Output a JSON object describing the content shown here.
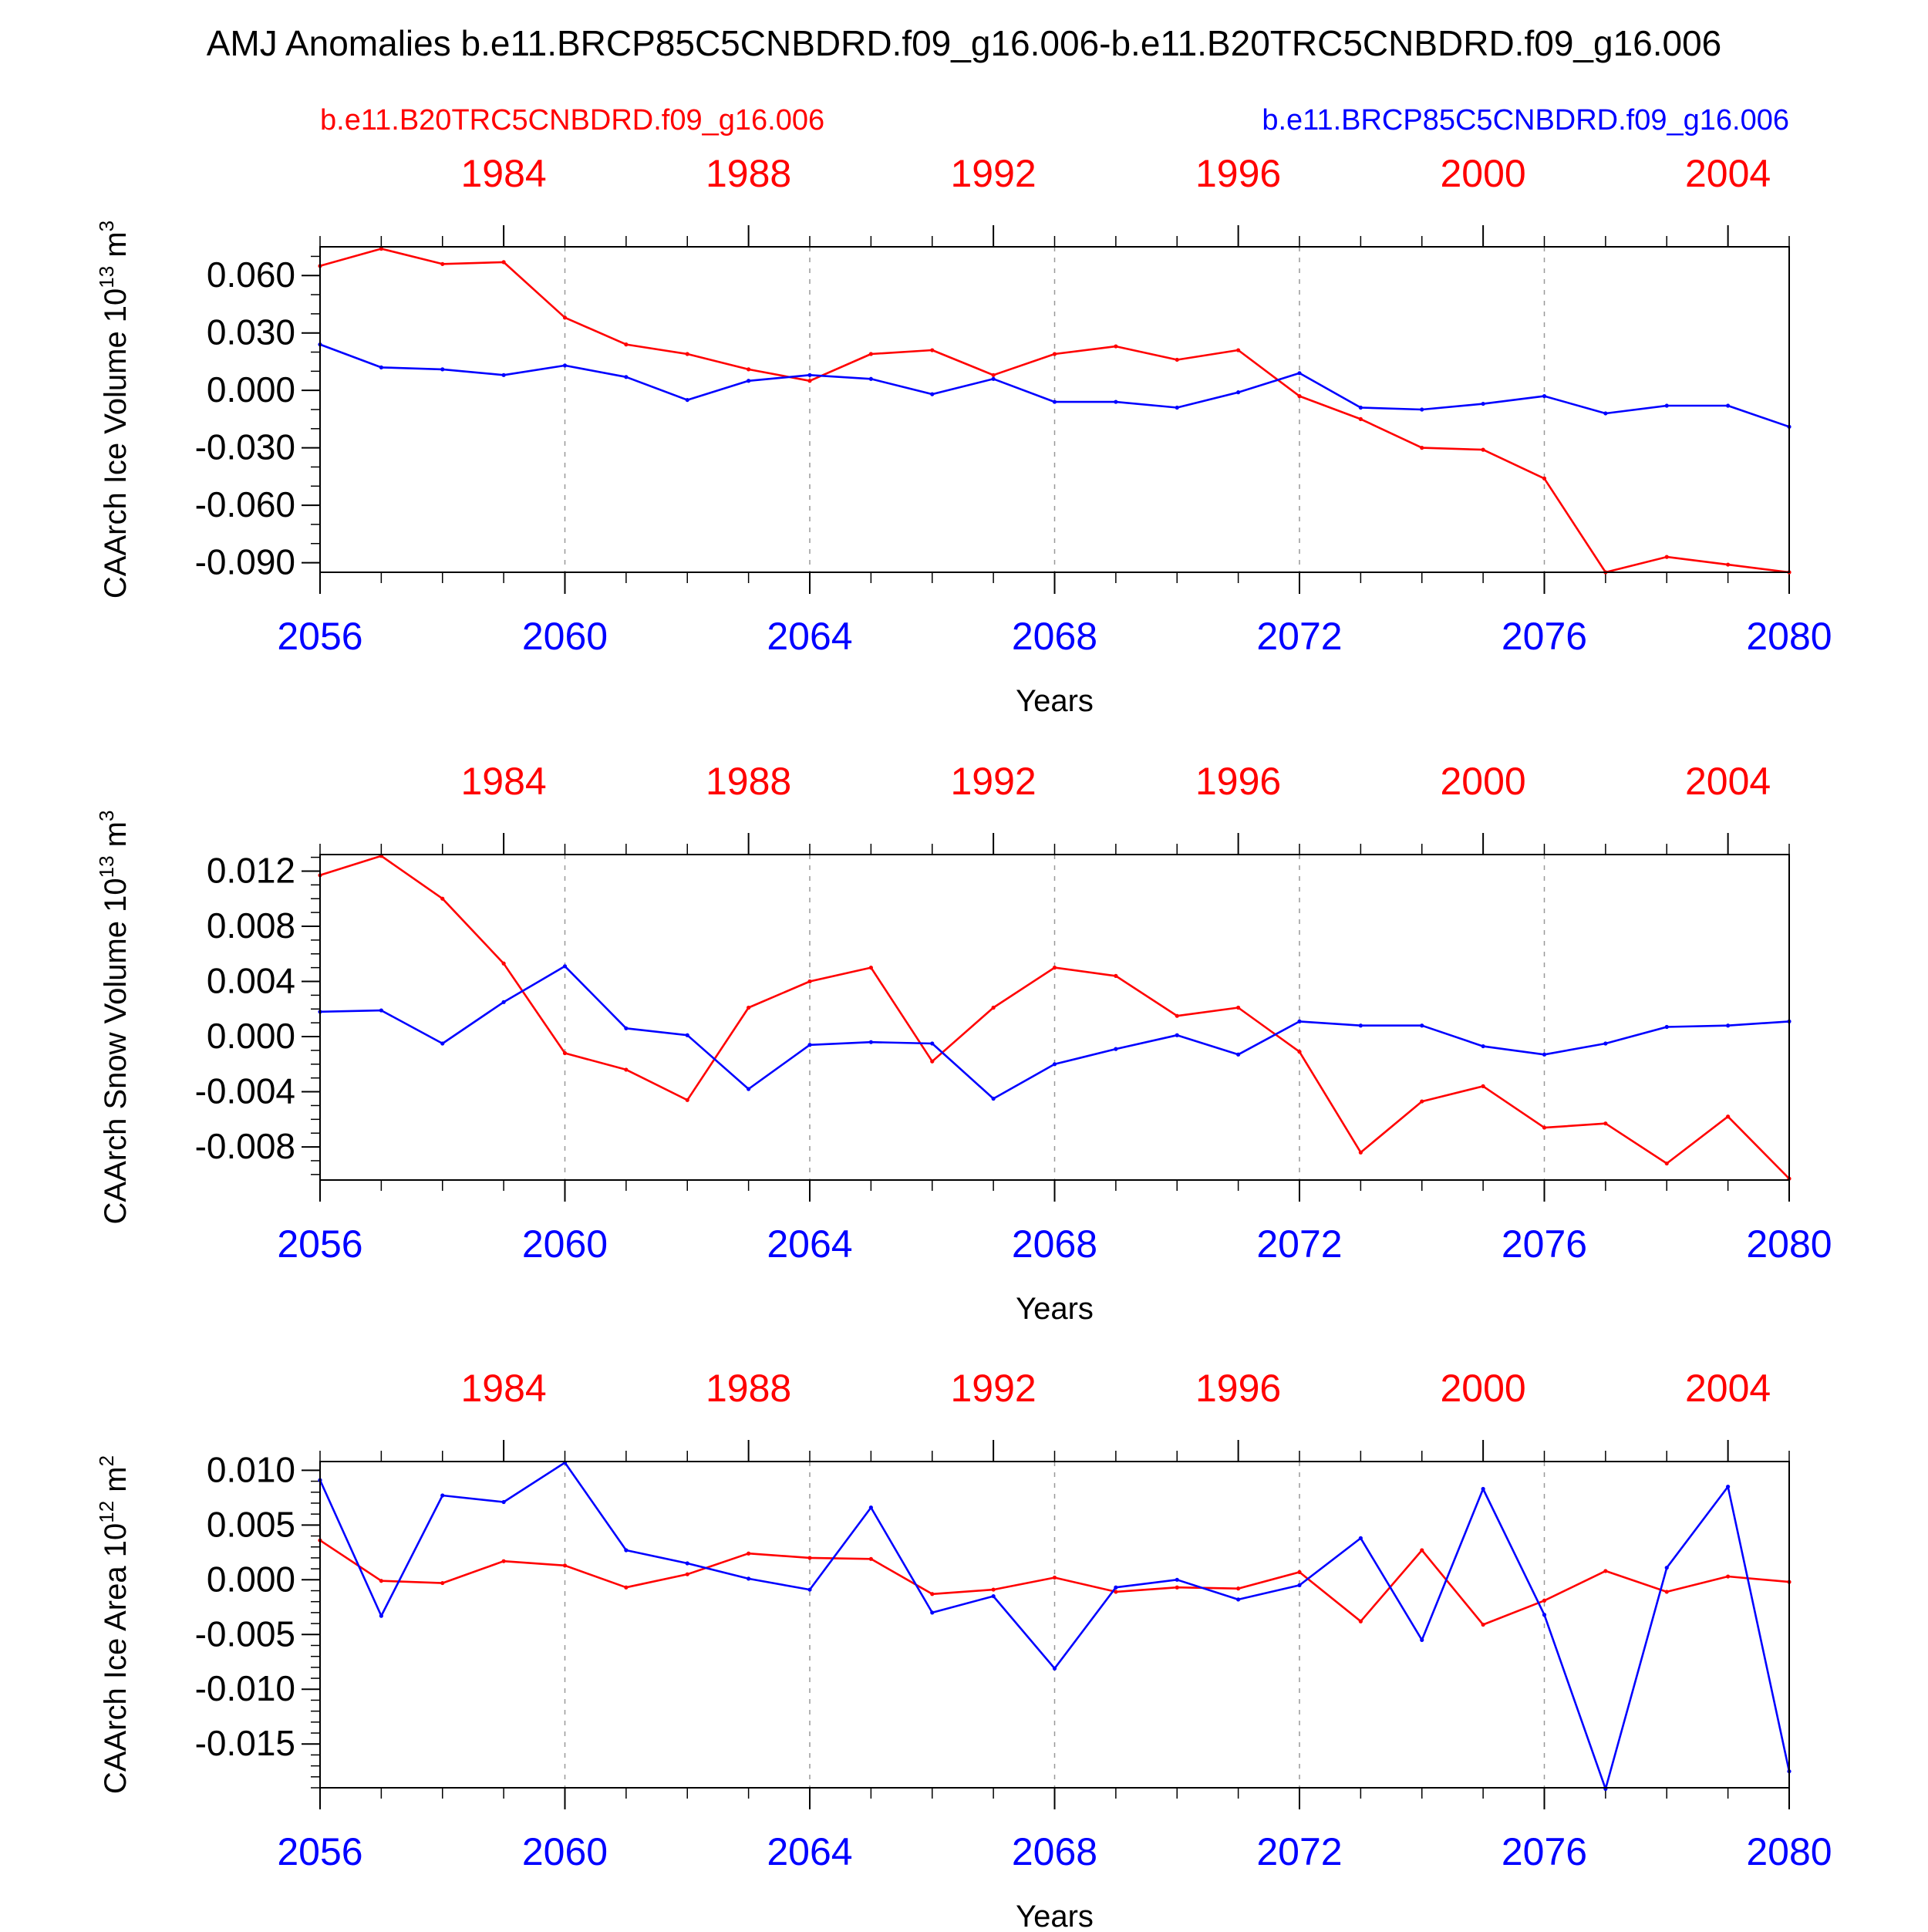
{
  "title": "AMJ Anomalies b.e11.BRCP85C5CNBDRD.f09_g16.006-b.e11.B20TRC5CNBDRD.f09_g16.006",
  "legend": {
    "red_label": "b.e11.B20TRC5CNBDRD.f09_g16.006",
    "blue_label": "b.e11.BRCP85C5CNBDRD.f09_g16.006"
  },
  "colors": {
    "red": "#ff0000",
    "blue": "#0000ff",
    "axis": "#000000",
    "grid": "#999999"
  },
  "chart_data": [
    {
      "type": "line",
      "ylabel": "CAArch Ice Volume 10",
      "ylabel_exp": "13",
      "ylabel_unit": " m",
      "ylabel_unit_exp": "3",
      "xlabel": "Years",
      "xlim": [
        2056,
        2080
      ],
      "ylim": [
        -0.095,
        0.075
      ],
      "yticks": [
        0.06,
        0.03,
        0.0,
        -0.03,
        -0.06,
        -0.09
      ],
      "ytick_labels": [
        "0.060",
        "0.030",
        "0.000",
        "-0.030",
        "-0.060",
        "-0.090"
      ],
      "yminor_step": 0.01,
      "x_bottom_ticks": [
        2056,
        2060,
        2064,
        2068,
        2072,
        2076,
        2080
      ],
      "x_bottom_labels": [
        "2056",
        "2060",
        "2064",
        "2068",
        "2072",
        "2076",
        "2080"
      ],
      "x_top_ticks": [
        2059,
        2063,
        2067,
        2071,
        2075,
        2079
      ],
      "x_top_labels": [
        "1984",
        "1988",
        "1992",
        "1996",
        "2000",
        "2004"
      ],
      "gridlines_x": [
        2060,
        2064,
        2068,
        2072,
        2076
      ],
      "x": [
        2056,
        2057,
        2058,
        2059,
        2060,
        2061,
        2062,
        2063,
        2064,
        2065,
        2066,
        2067,
        2068,
        2069,
        2070,
        2071,
        2072,
        2073,
        2074,
        2075,
        2076,
        2077,
        2078,
        2079,
        2080
      ],
      "series": [
        {
          "name": "b.e11.B20TRC5CNBDRD.f09_g16.006",
          "color": "red",
          "values": [
            0.065,
            0.074,
            0.066,
            0.067,
            0.038,
            0.024,
            0.019,
            0.011,
            0.005,
            0.019,
            0.021,
            0.008,
            0.019,
            0.023,
            0.016,
            0.021,
            -0.003,
            -0.015,
            -0.03,
            -0.031,
            -0.046,
            -0.095,
            -0.087,
            -0.091,
            -0.095
          ]
        },
        {
          "name": "b.e11.BRCP85C5CNBDRD.f09_g16.006",
          "color": "blue",
          "values": [
            0.024,
            0.012,
            0.011,
            0.008,
            0.013,
            0.007,
            -0.005,
            0.005,
            0.008,
            0.006,
            -0.002,
            0.006,
            -0.006,
            -0.006,
            -0.009,
            -0.001,
            0.009,
            -0.009,
            -0.01,
            -0.007,
            -0.003,
            -0.012,
            -0.008,
            -0.008,
            -0.019
          ]
        }
      ]
    },
    {
      "type": "line",
      "ylabel": "CAArch Snow Volume 10",
      "ylabel_exp": "13",
      "ylabel_unit": " m",
      "ylabel_unit_exp": "3",
      "xlabel": "Years",
      "xlim": [
        2056,
        2080
      ],
      "ylim": [
        -0.0104,
        0.0132
      ],
      "yticks": [
        0.012,
        0.008,
        0.004,
        0.0,
        -0.004,
        -0.008
      ],
      "ytick_labels": [
        "0.012",
        "0.008",
        "0.004",
        "0.000",
        "-0.004",
        "-0.008"
      ],
      "yminor_step": 0.001,
      "x_bottom_ticks": [
        2056,
        2060,
        2064,
        2068,
        2072,
        2076,
        2080
      ],
      "x_bottom_labels": [
        "2056",
        "2060",
        "2064",
        "2068",
        "2072",
        "2076",
        "2080"
      ],
      "x_top_ticks": [
        2059,
        2063,
        2067,
        2071,
        2075,
        2079
      ],
      "x_top_labels": [
        "1984",
        "1988",
        "1992",
        "1996",
        "2000",
        "2004"
      ],
      "gridlines_x": [
        2060,
        2064,
        2068,
        2072,
        2076
      ],
      "x": [
        2056,
        2057,
        2058,
        2059,
        2060,
        2061,
        2062,
        2063,
        2064,
        2065,
        2066,
        2067,
        2068,
        2069,
        2070,
        2071,
        2072,
        2073,
        2074,
        2075,
        2076,
        2077,
        2078,
        2079,
        2080
      ],
      "series": [
        {
          "name": "b.e11.B20TRC5CNBDRD.f09_g16.006",
          "color": "red",
          "values": [
            0.0117,
            0.0131,
            0.01,
            0.0053,
            -0.0012,
            -0.0024,
            -0.0046,
            0.0021,
            0.004,
            0.005,
            -0.0018,
            0.0021,
            0.005,
            0.0044,
            0.0015,
            0.0021,
            -0.0011,
            -0.0084,
            -0.0047,
            -0.0036,
            -0.0066,
            -0.0063,
            -0.0092,
            -0.0058,
            -0.0103
          ]
        },
        {
          "name": "b.e11.BRCP85C5CNBDRD.f09_g16.006",
          "color": "blue",
          "values": [
            0.0018,
            0.0019,
            -0.0005,
            0.0025,
            0.0051,
            0.0006,
            0.0001,
            -0.0038,
            -0.0006,
            -0.0004,
            -0.0005,
            -0.0045,
            -0.002,
            -0.0009,
            0.0001,
            -0.0013,
            0.0011,
            0.0008,
            0.0008,
            -0.0007,
            -0.0013,
            -0.0005,
            0.0007,
            0.0008,
            0.0011
          ]
        }
      ]
    },
    {
      "type": "line",
      "ylabel": "CAArch Ice Area 10",
      "ylabel_exp": "12",
      "ylabel_unit": " m",
      "ylabel_unit_exp": "2",
      "xlabel": "Years",
      "xlim": [
        2056,
        2080
      ],
      "ylim": [
        -0.019,
        0.0108
      ],
      "yticks": [
        0.01,
        0.005,
        0.0,
        -0.005,
        -0.01,
        -0.015
      ],
      "ytick_labels": [
        "0.010",
        "0.005",
        "0.000",
        "-0.005",
        "-0.010",
        "-0.015"
      ],
      "yminor_step": 0.001,
      "x_bottom_ticks": [
        2056,
        2060,
        2064,
        2068,
        2072,
        2076,
        2080
      ],
      "x_bottom_labels": [
        "2056",
        "2060",
        "2064",
        "2068",
        "2072",
        "2076",
        "2080"
      ],
      "x_top_ticks": [
        2059,
        2063,
        2067,
        2071,
        2075,
        2079
      ],
      "x_top_labels": [
        "1984",
        "1988",
        "1992",
        "1996",
        "2000",
        "2004"
      ],
      "gridlines_x": [
        2060,
        2064,
        2068,
        2072,
        2076
      ],
      "x": [
        2056,
        2057,
        2058,
        2059,
        2060,
        2061,
        2062,
        2063,
        2064,
        2065,
        2066,
        2067,
        2068,
        2069,
        2070,
        2071,
        2072,
        2073,
        2074,
        2075,
        2076,
        2077,
        2078,
        2079,
        2080
      ],
      "series": [
        {
          "name": "b.e11.B20TRC5CNBDRD.f09_g16.006",
          "color": "red",
          "values": [
            0.0036,
            -0.0001,
            -0.0003,
            0.0017,
            0.0013,
            -0.0007,
            0.0005,
            0.0024,
            0.002,
            0.0019,
            -0.0013,
            -0.0009,
            0.0002,
            -0.0011,
            -0.0007,
            -0.0008,
            0.0007,
            -0.0038,
            0.0027,
            -0.0041,
            -0.0019,
            0.0008,
            -0.0011,
            0.0003,
            -0.0002
          ]
        },
        {
          "name": "b.e11.BRCP85C5CNBDRD.f09_g16.006",
          "color": "blue",
          "values": [
            0.0091,
            -0.0033,
            0.0077,
            0.0071,
            0.0107,
            0.0027,
            0.0015,
            0.0001,
            -0.0009,
            0.0066,
            -0.003,
            -0.0015,
            -0.0081,
            -0.0007,
            0.0,
            -0.0018,
            -0.0005,
            0.0038,
            -0.0055,
            0.0083,
            -0.0032,
            -0.0191,
            0.0011,
            0.0085,
            -0.0175
          ]
        }
      ]
    }
  ]
}
